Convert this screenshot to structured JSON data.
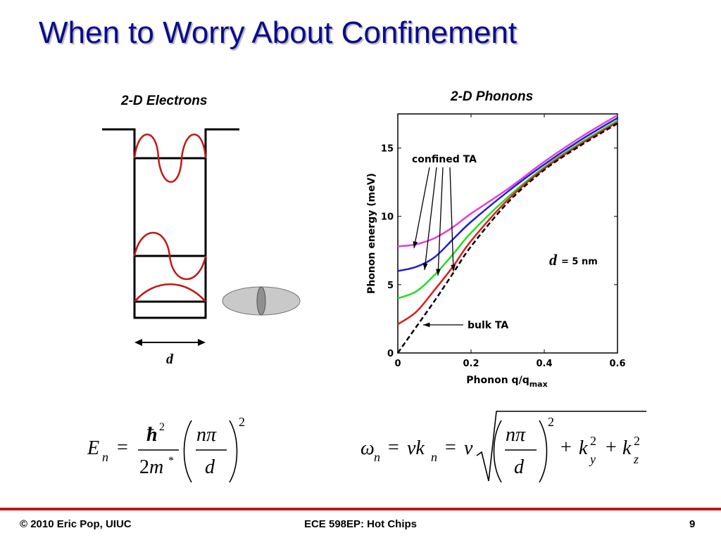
{
  "slide": {
    "title": "When to Worry About Confinement",
    "left_subtitle": "2-D Electrons",
    "right_subtitle": "2-D Phonons"
  },
  "well_diagram": {
    "width_label": "d"
  },
  "chart_data": {
    "type": "line",
    "title": "",
    "xlabel": "Phonon q/q_max",
    "xlabel_main": "Phonon q/q",
    "xlabel_sub": "max",
    "ylabel": "Phonon energy (meV)",
    "xlim": [
      0,
      0.6
    ],
    "ylim": [
      0,
      17.5
    ],
    "x_ticks": [
      "0",
      "0.2",
      "0.4",
      "0.6"
    ],
    "y_ticks": [
      "0",
      "5",
      "10",
      "15"
    ],
    "grid": false,
    "annotations": {
      "confined": "confined TA",
      "bulk": "bulk TA",
      "d_symbol": "d",
      "d_value": "= 5 nm"
    },
    "series": [
      {
        "color": "#e13de0",
        "style": "solid",
        "x": [
          0,
          0.05,
          0.1,
          0.15,
          0.2,
          0.3,
          0.4,
          0.5,
          0.6
        ],
        "y": [
          7.8,
          7.95,
          8.4,
          9.2,
          10.2,
          12.0,
          14.0,
          15.8,
          17.4
        ]
      },
      {
        "color": "#1f1fd0",
        "style": "solid",
        "x": [
          0,
          0.05,
          0.1,
          0.15,
          0.2,
          0.3,
          0.4,
          0.5,
          0.6
        ],
        "y": [
          6.0,
          6.3,
          7.0,
          8.3,
          9.6,
          11.8,
          13.8,
          15.6,
          17.2
        ]
      },
      {
        "color": "#22dd22",
        "style": "solid",
        "x": [
          0,
          0.05,
          0.1,
          0.15,
          0.2,
          0.3,
          0.4,
          0.5,
          0.6
        ],
        "y": [
          4.0,
          4.5,
          5.7,
          7.2,
          8.8,
          11.4,
          13.6,
          15.4,
          17.0
        ]
      },
      {
        "color": "#e01b1b",
        "style": "solid",
        "x": [
          0,
          0.05,
          0.1,
          0.15,
          0.2,
          0.3,
          0.4,
          0.5,
          0.6
        ],
        "y": [
          2.1,
          3.0,
          4.6,
          6.3,
          8.2,
          11.2,
          13.5,
          15.3,
          16.9
        ]
      },
      {
        "color": "#000000",
        "style": "dashed",
        "x": [
          0,
          0.05,
          0.1,
          0.15,
          0.2,
          0.3,
          0.4,
          0.5,
          0.6
        ],
        "y": [
          0,
          1.9,
          3.8,
          5.8,
          7.8,
          11.0,
          13.4,
          15.2,
          16.8
        ]
      }
    ]
  },
  "equations": {
    "left": {
      "E": "E",
      "n": "n",
      "eq": "=",
      "hbar": "ħ",
      "two": "2",
      "m": "m",
      "star": "*",
      "npi": "nπ",
      "d": "d",
      "pow": "2"
    },
    "right": {
      "omega": "ω",
      "n": "n",
      "eq1": "=",
      "vk": "vk",
      "eq2": "=",
      "v": "v",
      "npi": "nπ",
      "d": "d",
      "pow": "2",
      "plus1": "+",
      "ky": "k",
      "y": "y",
      "plus2": "+",
      "kz": "k",
      "z": "z"
    }
  },
  "footer": {
    "left": "© 2010 Eric Pop, UIUC",
    "center": "ECE 598EP: Hot Chips",
    "right": "9"
  }
}
